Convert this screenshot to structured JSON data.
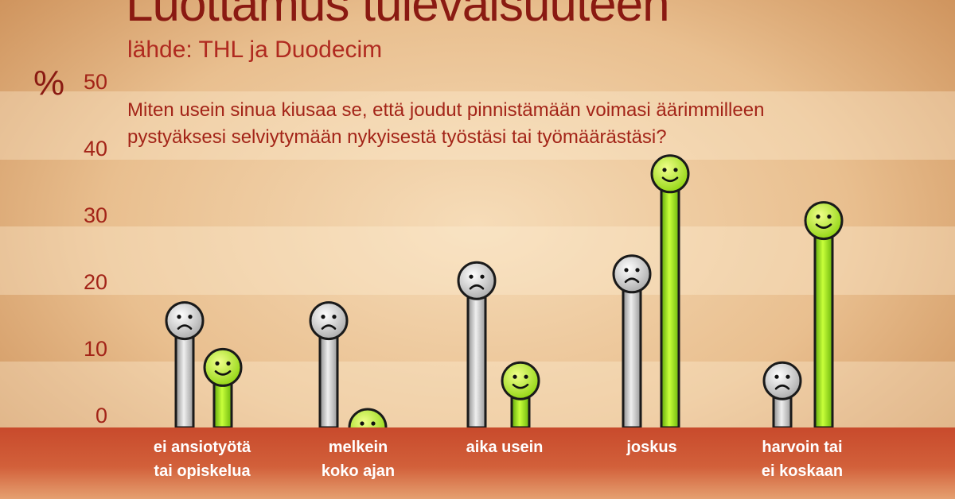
{
  "title": "Luottamus tulevaisuuteen",
  "subtitle": "lähde: THL ja Duodecim",
  "y_unit": "%",
  "question_line1": "Miten usein sinua kiusaa se, että joudut pinnistämään voimasi äärimmilleen",
  "question_line2": "pystyäksesi selviytymään nykyisestä työstäsi tai työmäärästäsi?",
  "colors": {
    "sad_bar": "#b8b8b8",
    "happy_bar": "#9be012",
    "text": "#a32418"
  },
  "chart_data": {
    "type": "bar",
    "ylim": [
      0,
      50
    ],
    "yticks": [
      "0",
      "10",
      "20",
      "30",
      "40",
      "50"
    ],
    "categories": [
      [
        "ei ansiotyötä",
        "tai opiskelua"
      ],
      [
        "melkein",
        "koko ajan"
      ],
      [
        "aika usein"
      ],
      [
        "joskus"
      ],
      [
        "harvoin tai",
        "ei koskaan"
      ]
    ],
    "series": [
      {
        "icon": "sad-face-icon",
        "values": [
          16,
          16,
          22,
          23,
          7
        ]
      },
      {
        "icon": "happy-face-icon",
        "values": [
          9,
          0,
          7,
          38,
          31
        ]
      }
    ]
  }
}
